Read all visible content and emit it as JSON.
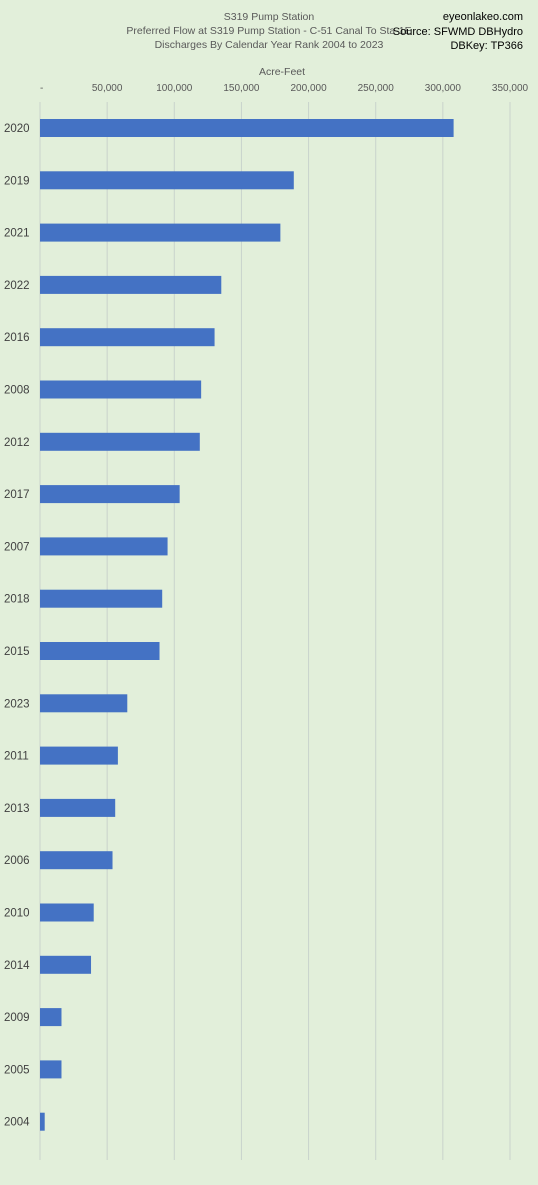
{
  "header": {
    "title_lines": [
      "S319 Pump Station",
      "Preferred Flow at S319 Pump Station - C-51 Canal To Sta-1E",
      "Discharges By Calendar Year Rank 2004 to 2023"
    ],
    "credit_lines": [
      "eyeonlakeo.com",
      "Source: SFWMD DBHydro",
      "DBKey: TP366"
    ]
  },
  "colors": {
    "background": "#e2efda",
    "bar": "#4472c4",
    "grid": "#c9d3cc"
  },
  "chart_data": {
    "type": "bar",
    "orientation": "horizontal",
    "title": "S319 Pump Station",
    "xlabel": "Acre-Feet",
    "xlim": [
      0,
      350000
    ],
    "xticks": [
      0,
      50000,
      100000,
      150000,
      200000,
      250000,
      300000,
      350000
    ],
    "xtick_labels": [
      "-",
      "50,000",
      "100,000",
      "150,000",
      "200,000",
      "250,000",
      "300,000",
      "350,000"
    ],
    "grid": true,
    "categories": [
      "2020",
      "2019",
      "2021",
      "2022",
      "2016",
      "2008",
      "2012",
      "2017",
      "2007",
      "2018",
      "2015",
      "2023",
      "2011",
      "2013",
      "2006",
      "2010",
      "2014",
      "2009",
      "2005",
      "2004"
    ],
    "values": [
      308000,
      189000,
      179000,
      135000,
      130000,
      120000,
      119000,
      104000,
      95000,
      91000,
      89000,
      65000,
      58000,
      56000,
      54000,
      40000,
      38000,
      16000,
      16000,
      3500
    ]
  }
}
